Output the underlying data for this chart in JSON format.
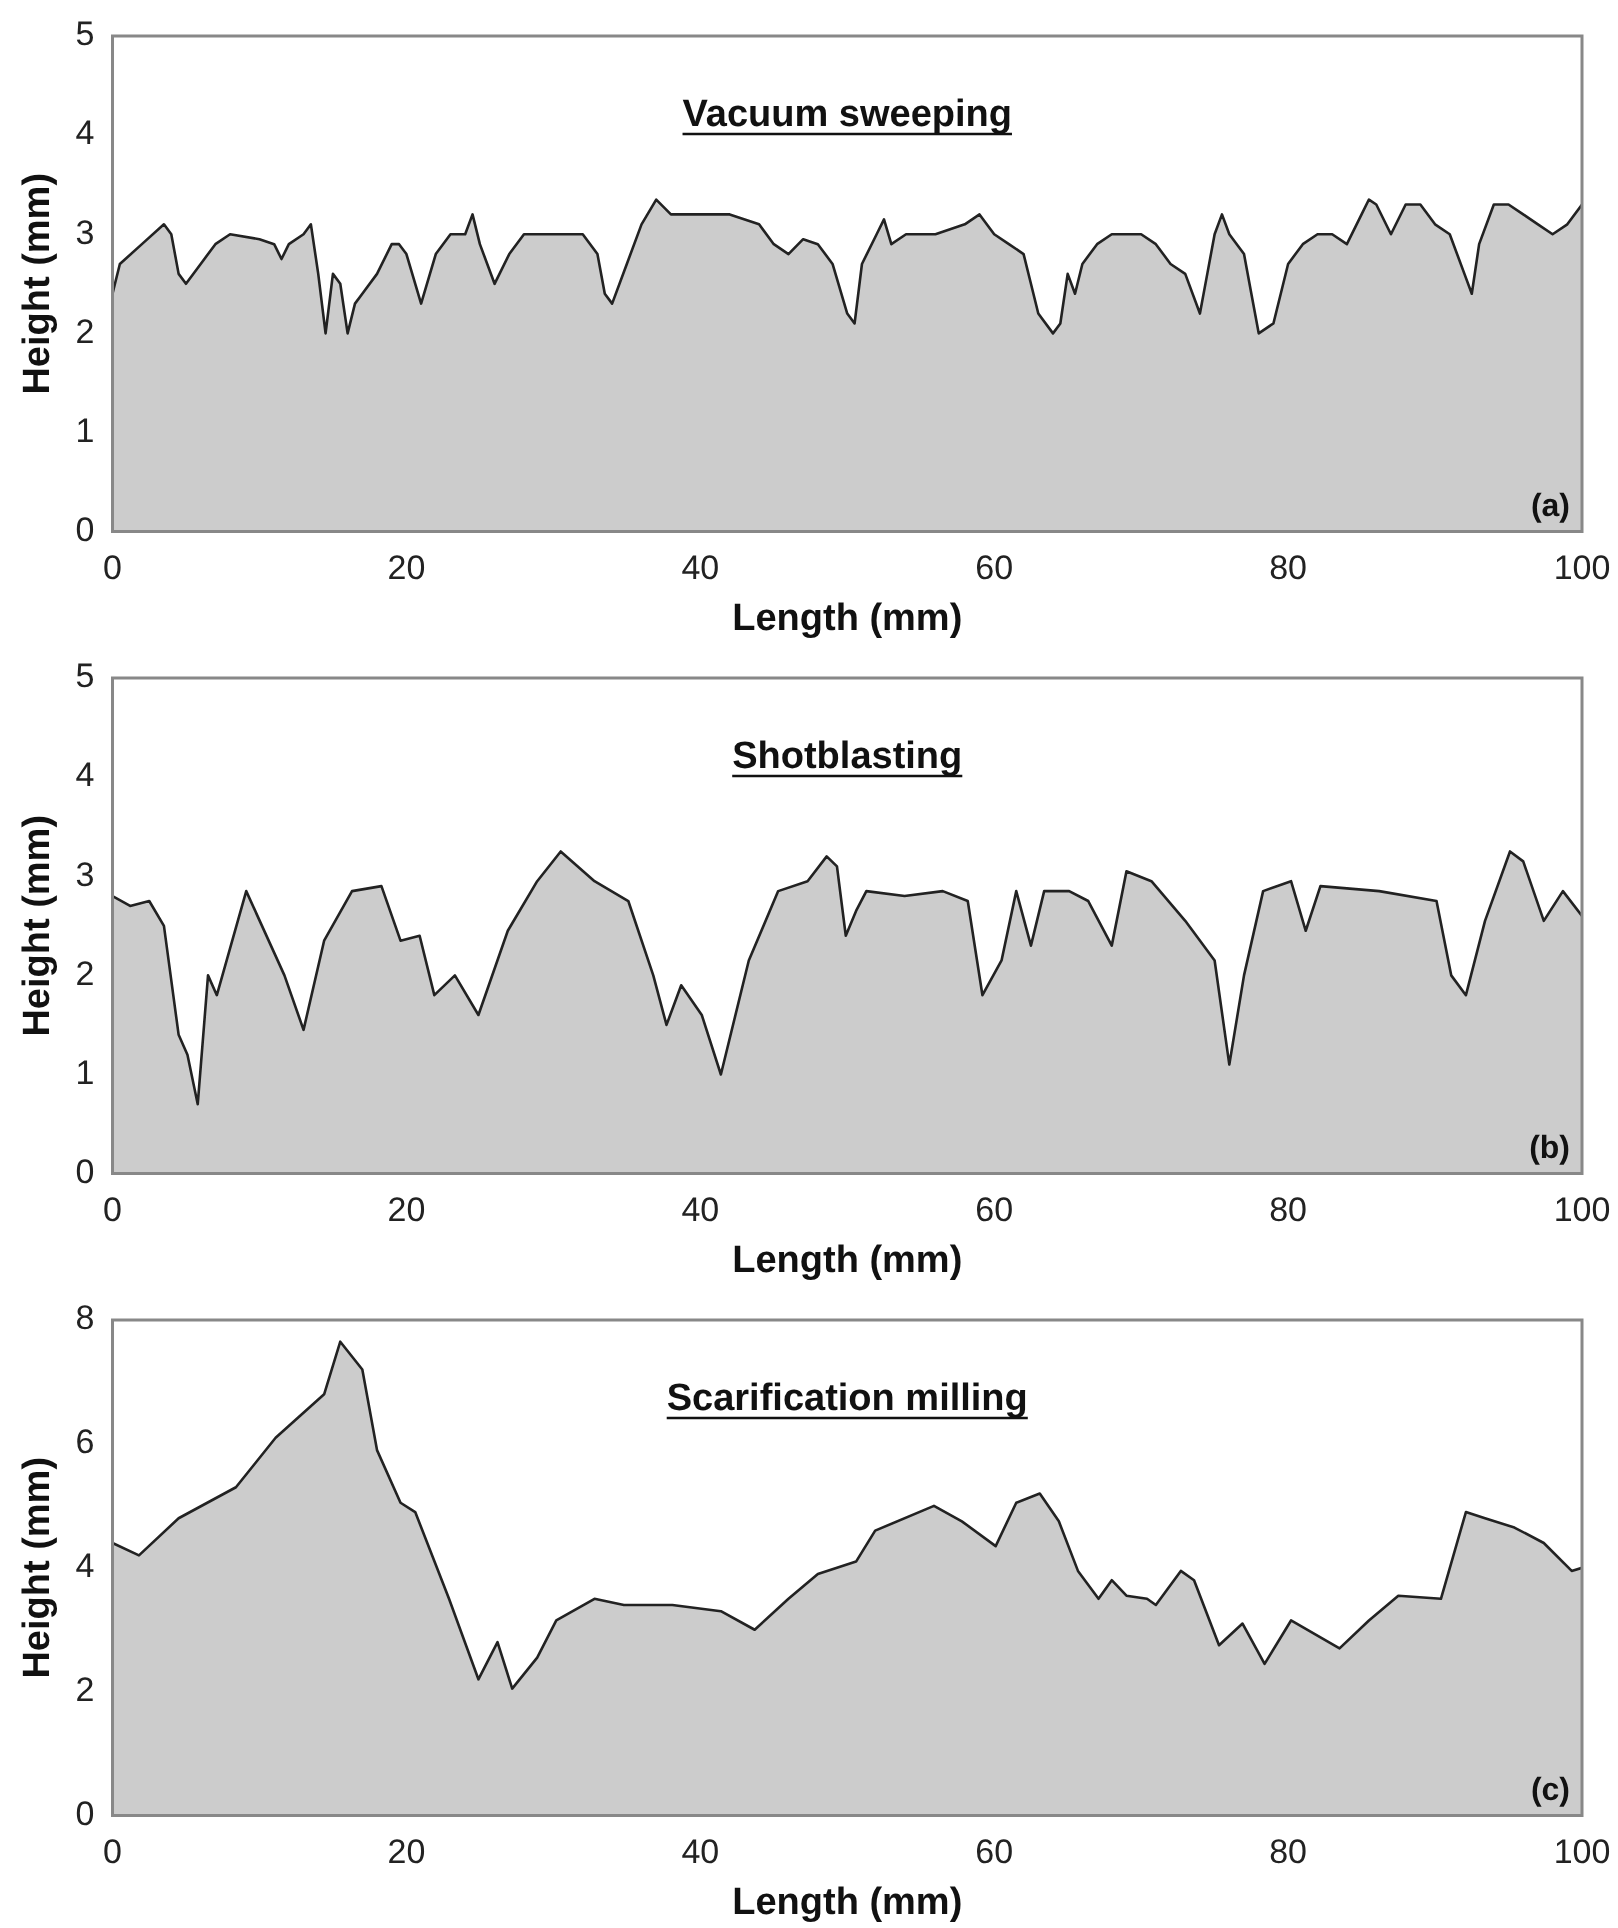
{
  "chart_data": [
    {
      "type": "area",
      "title": "Vacuum sweeping",
      "xlabel": "Length (mm)",
      "ylabel": "Height (mm)",
      "annotations": [
        "(a)"
      ],
      "xlim": [
        0,
        100
      ],
      "xticks": [
        0,
        20,
        40,
        60,
        80,
        100
      ],
      "ylim": [
        0,
        5
      ],
      "yticks": [
        0,
        1,
        2,
        3,
        4,
        5
      ],
      "grid": false,
      "legend": false,
      "series": [
        {
          "color": "#cccccc",
          "x": [
            0,
            0.5,
            2,
            3.5,
            4,
            4.5,
            5,
            6,
            7,
            8,
            10,
            11,
            11.5,
            12,
            13,
            13.5,
            14,
            14.5,
            15,
            15.5,
            16,
            16.5,
            17,
            18,
            19,
            19.5,
            20,
            21,
            22,
            23,
            24,
            24.5,
            25,
            26,
            27,
            28,
            30,
            32,
            33,
            33.5,
            34,
            35,
            36,
            37,
            38,
            40,
            42,
            44,
            45,
            46,
            47,
            48,
            49,
            50,
            50.5,
            51,
            52,
            52.5,
            53,
            54,
            56,
            57,
            58,
            59,
            60,
            61,
            62,
            62.5,
            63,
            64,
            64.5,
            65,
            65.5,
            66,
            67,
            68,
            70,
            71,
            72,
            73,
            74,
            74.5,
            75,
            75.5,
            76,
            77,
            77.5,
            78,
            79,
            80,
            81,
            82,
            83,
            84,
            85,
            85.5,
            86,
            87,
            88,
            89,
            90,
            91,
            92,
            92.5,
            93,
            94,
            95,
            96,
            97,
            98,
            99,
            100
          ],
          "values": [
            2.4,
            2.7,
            2.9,
            3.1,
            3.0,
            2.6,
            2.5,
            2.7,
            2.9,
            3.0,
            2.95,
            2.9,
            2.75,
            2.9,
            3.0,
            3.1,
            2.6,
            2.0,
            2.6,
            2.5,
            2.0,
            2.3,
            2.4,
            2.6,
            2.9,
            2.9,
            2.8,
            2.3,
            2.8,
            3.0,
            3.0,
            3.2,
            2.9,
            2.5,
            2.8,
            3.0,
            3.0,
            3.0,
            2.8,
            2.4,
            2.3,
            2.7,
            3.1,
            3.35,
            3.2,
            3.2,
            3.2,
            3.1,
            2.9,
            2.8,
            2.95,
            2.9,
            2.7,
            2.2,
            2.1,
            2.7,
            3.0,
            3.15,
            2.9,
            3.0,
            3.0,
            3.05,
            3.1,
            3.2,
            3.0,
            2.9,
            2.8,
            2.5,
            2.2,
            2.0,
            2.1,
            2.6,
            2.4,
            2.7,
            2.9,
            3.0,
            3.0,
            2.9,
            2.7,
            2.6,
            2.2,
            2.6,
            3.0,
            3.2,
            3.0,
            2.8,
            2.4,
            2.0,
            2.1,
            2.7,
            2.9,
            3.0,
            3.0,
            2.9,
            3.2,
            3.35,
            3.3,
            3.0,
            3.3,
            3.3,
            3.1,
            3.0,
            2.6,
            2.4,
            2.9,
            3.3,
            3.3,
            3.2,
            3.1,
            3.0,
            3.1,
            3.3
          ]
        }
      ]
    },
    {
      "type": "area",
      "title": "Shotblasting",
      "xlabel": "Length (mm)",
      "ylabel": "Height (mm)",
      "annotations": [
        "(b)"
      ],
      "xlim": [
        0,
        100
      ],
      "xticks": [
        0,
        20,
        40,
        60,
        80,
        100
      ],
      "ylim": [
        0,
        5
      ],
      "yticks": [
        0,
        1,
        2,
        3,
        4,
        5
      ],
      "grid": false,
      "legend": false,
      "series": [
        {
          "color": "#cccccc",
          "x": [
            0,
            1.2,
            2.5,
            3.5,
            4.5,
            5.1,
            5.8,
            6.5,
            7.1,
            9.1,
            11.7,
            13.0,
            14.4,
            16.3,
            18.3,
            19.6,
            20.9,
            21.9,
            23.3,
            24.9,
            26.9,
            28.9,
            30.5,
            32.8,
            35.1,
            36.8,
            37.7,
            38.7,
            40.1,
            41.4,
            43.3,
            45.3,
            47.3,
            48.6,
            49.3,
            49.9,
            50.6,
            51.3,
            53.9,
            56.5,
            58.2,
            59.2,
            60.5,
            61.5,
            62.5,
            63.4,
            65.1,
            66.4,
            68.0,
            69.0,
            70.7,
            73.0,
            75.0,
            76.0,
            77.0,
            78.3,
            80.2,
            81.2,
            82.2,
            86.2,
            90.1,
            91.1,
            92.1,
            93.4,
            95.1,
            96.0,
            97.4,
            98.7,
            100
          ],
          "values": [
            2.8,
            2.7,
            2.75,
            2.5,
            1.4,
            1.2,
            0.7,
            2.0,
            1.8,
            2.85,
            2.0,
            1.45,
            2.35,
            2.85,
            2.9,
            2.35,
            2.4,
            1.8,
            2.0,
            1.6,
            2.45,
            2.95,
            3.25,
            2.95,
            2.75,
            2.0,
            1.5,
            1.9,
            1.6,
            1.0,
            2.15,
            2.85,
            2.95,
            3.2,
            3.1,
            2.4,
            2.65,
            2.85,
            2.8,
            2.85,
            2.75,
            1.8,
            2.15,
            2.85,
            2.3,
            2.85,
            2.85,
            2.75,
            2.3,
            3.05,
            2.95,
            2.55,
            2.15,
            1.1,
            2.0,
            2.85,
            2.95,
            2.45,
            2.9,
            2.85,
            2.75,
            2.0,
            1.8,
            2.55,
            3.25,
            3.15,
            2.55,
            2.85,
            2.6
          ]
        }
      ]
    },
    {
      "type": "area",
      "title": "Scarification milling",
      "xlabel": "Length (mm)",
      "ylabel": "Height (mm)",
      "annotations": [
        "(c)"
      ],
      "xlim": [
        0,
        100
      ],
      "xticks": [
        0,
        20,
        40,
        60,
        80,
        100
      ],
      "ylim": [
        0,
        8
      ],
      "yticks": [
        0,
        2,
        4,
        6,
        8
      ],
      "grid": false,
      "legend": false,
      "series": [
        {
          "color": "#cccccc",
          "x": [
            0,
            1.8,
            4.5,
            8.4,
            11.1,
            14.4,
            15.5,
            17.0,
            18.0,
            19.6,
            20.6,
            22.9,
            24.9,
            26.2,
            27.2,
            28.9,
            30.2,
            32.8,
            34.8,
            38.1,
            41.4,
            43.7,
            46.0,
            48.0,
            50.6,
            51.9,
            55.9,
            57.8,
            60.1,
            61.5,
            63.1,
            64.4,
            65.7,
            67.1,
            68.0,
            69.0,
            70.4,
            71.0,
            72.7,
            73.6,
            75.3,
            76.9,
            78.4,
            80.2,
            83.5,
            85.5,
            87.5,
            90.4,
            92.1,
            93.4,
            95.4,
            97.4,
            99.3,
            100
          ],
          "values": [
            4.4,
            4.2,
            4.8,
            5.3,
            6.1,
            6.8,
            7.65,
            7.2,
            5.9,
            5.05,
            4.9,
            3.5,
            2.2,
            2.8,
            2.05,
            2.55,
            3.15,
            3.5,
            3.4,
            3.4,
            3.3,
            3.0,
            3.5,
            3.9,
            4.1,
            4.6,
            5.0,
            4.75,
            4.35,
            5.05,
            5.2,
            4.75,
            3.95,
            3.5,
            3.8,
            3.55,
            3.5,
            3.4,
            3.95,
            3.8,
            2.75,
            3.1,
            2.45,
            3.15,
            2.7,
            3.15,
            3.55,
            3.5,
            4.9,
            4.8,
            4.65,
            4.4,
            3.95,
            4.0
          ]
        }
      ]
    }
  ]
}
